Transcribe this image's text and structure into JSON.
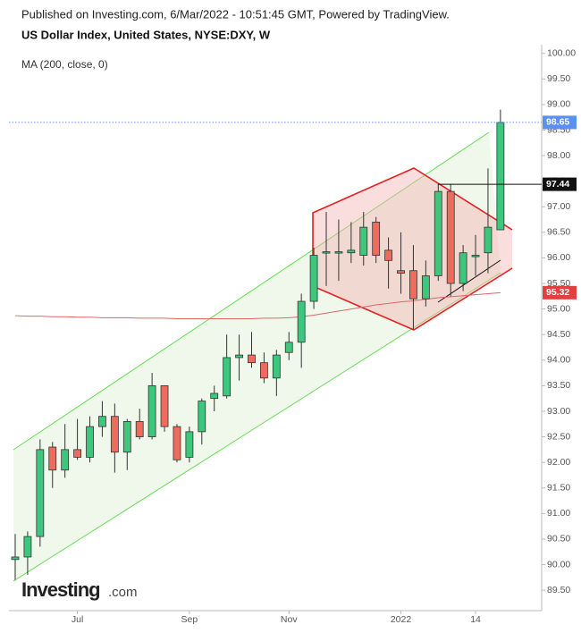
{
  "chart_data": {
    "type": "candlestick",
    "header": "Published on Investing.com, 6/Mar/2022 - 10:51:45 GMT, Powered by TradingView.",
    "title": "US Dollar Index, United States, NYSE:DXY, W",
    "indicator_label": "MA (200, close, 0)",
    "watermark": [
      "Investing",
      ".com"
    ],
    "categories": [
      null,
      null,
      null,
      null,
      null,
      "Jul",
      null,
      null,
      null,
      null,
      null,
      null,
      null,
      null,
      "Sep",
      null,
      null,
      null,
      null,
      null,
      null,
      null,
      "Nov",
      null,
      null,
      null,
      null,
      null,
      null,
      null,
      null,
      "2022",
      null,
      null,
      null,
      null,
      null,
      "14",
      null,
      null
    ],
    "open": [
      90.1,
      90.15,
      90.55,
      92.3,
      91.85,
      92.25,
      92.1,
      92.7,
      92.9,
      92.2,
      92.8,
      92.5,
      93.5,
      92.7,
      92.1,
      92.6,
      93.25,
      93.3,
      94.05,
      94.1,
      93.95,
      93.65,
      94.15,
      94.35,
      95.15,
      96.1,
      96.12,
      96.1,
      96.05,
      96.7,
      96.15,
      95.75,
      95.75,
      95.2,
      95.65,
      97.3,
      95.5,
      96.05,
      96.1,
      96.55
    ],
    "high": [
      90.6,
      90.65,
      92.45,
      92.4,
      92.75,
      92.85,
      92.9,
      93.2,
      93.15,
      92.85,
      93.05,
      93.75,
      93.5,
      92.75,
      92.7,
      93.25,
      93.5,
      94.5,
      94.5,
      94.55,
      94.15,
      94.2,
      94.55,
      95.3,
      96.2,
      96.9,
      96.75,
      96.7,
      96.9,
      96.8,
      96.4,
      96.5,
      96.25,
      95.95,
      97.45,
      97.45,
      96.25,
      96.45,
      97.75,
      98.9
    ],
    "low": [
      89.7,
      89.8,
      90.35,
      91.5,
      91.7,
      92.05,
      92.0,
      92.5,
      91.8,
      91.85,
      92.45,
      92.45,
      92.6,
      92.0,
      92.0,
      92.35,
      93.0,
      93.25,
      93.6,
      93.85,
      93.55,
      93.3,
      94.0,
      93.85,
      95.0,
      95.45,
      95.55,
      95.9,
      95.85,
      95.9,
      95.4,
      95.3,
      94.6,
      95.05,
      95.55,
      95.25,
      95.35,
      95.65,
      95.7,
      96.55
    ],
    "close": [
      90.15,
      90.55,
      92.25,
      91.85,
      92.25,
      92.1,
      92.7,
      92.9,
      92.2,
      92.8,
      92.5,
      93.5,
      92.7,
      92.05,
      92.6,
      93.2,
      93.35,
      94.05,
      94.1,
      93.95,
      93.65,
      94.1,
      94.35,
      95.15,
      96.05,
      96.12,
      96.12,
      96.15,
      96.6,
      96.05,
      95.95,
      95.7,
      95.2,
      95.65,
      97.3,
      95.5,
      96.1,
      96.05,
      96.6,
      98.65
    ],
    "up_color": "#3cc77c",
    "down_color": "#ef6b5e",
    "ma": {
      "color": "#e06666",
      "values": [
        94.87,
        94.86,
        94.86,
        94.85,
        94.85,
        94.84,
        94.84,
        94.83,
        94.83,
        94.83,
        94.82,
        94.82,
        94.82,
        94.81,
        94.81,
        94.81,
        94.81,
        94.81,
        94.81,
        94.81,
        94.82,
        94.82,
        94.83,
        94.85,
        94.88,
        94.92,
        94.96,
        95.0,
        95.04,
        95.08,
        95.11,
        95.14,
        95.16,
        95.19,
        95.22,
        95.24,
        95.26,
        95.28,
        95.3,
        95.32
      ]
    },
    "price_labels": [
      {
        "value": 98.65,
        "color": "#5b8ff0"
      },
      {
        "value": 97.44,
        "color": "#111111"
      },
      {
        "value": 95.32,
        "color": "#e04040"
      }
    ],
    "ylim": [
      89.1,
      100.17
    ],
    "yticks": [
      {
        "value": 89.5,
        "label": "89.50"
      },
      {
        "value": 90,
        "label": "90.00"
      },
      {
        "value": 90.5,
        "label": "90.50"
      },
      {
        "value": 91,
        "label": "91.00"
      },
      {
        "value": 91.5,
        "label": "91.50"
      },
      {
        "value": 92,
        "label": "92.00"
      },
      {
        "value": 92.5,
        "label": "92.50"
      },
      {
        "value": 93,
        "label": "93.00"
      },
      {
        "value": 93.5,
        "label": "93.50"
      },
      {
        "value": 94,
        "label": "94.00"
      },
      {
        "value": 94.5,
        "label": "94.50"
      },
      {
        "value": 95,
        "label": "95.00"
      },
      {
        "value": 95.5,
        "label": "95.50"
      },
      {
        "value": 96,
        "label": "96.00"
      },
      {
        "value": 96.5,
        "label": "96.50"
      },
      {
        "value": 97,
        "label": "97.00"
      },
      {
        "value": 97.5,
        "label": "97.50"
      },
      {
        "value": 98,
        "label": "98.00"
      },
      {
        "value": 98.5,
        "label": "98.50"
      },
      {
        "value": 99,
        "label": "99.00"
      },
      {
        "value": 99.5,
        "label": "99.50"
      },
      {
        "value": 100,
        "label": "100.00"
      }
    ]
  }
}
